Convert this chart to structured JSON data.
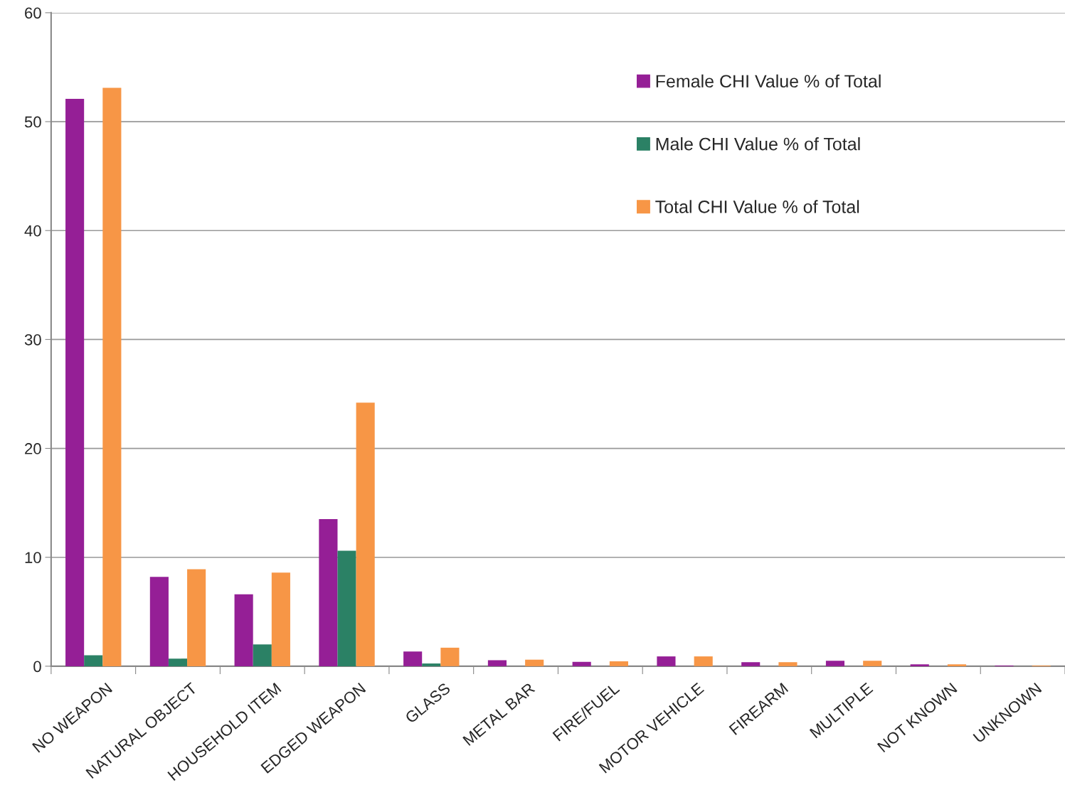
{
  "chart_data": {
    "type": "bar",
    "categories": [
      "NO WEAPON",
      "NATURAL OBJECT",
      "HOUSEHOLD ITEM",
      "EDGED WEAPON",
      "GLASS",
      "METAL BAR",
      "FIRE/FUEL",
      "MOTOR VEHICLE",
      "FIREARM",
      "MULTIPLE",
      "NOT KNOWN",
      "UNKNOWN"
    ],
    "series": [
      {
        "name": "Female CHI Value % of Total",
        "color": "#951f96",
        "values": [
          52.1,
          8.2,
          6.6,
          13.5,
          1.35,
          0.55,
          0.4,
          0.9,
          0.37,
          0.5,
          0.17,
          0.05
        ]
      },
      {
        "name": "Male CHI Value % of Total",
        "color": "#2b8165",
        "values": [
          1.0,
          0.7,
          2.0,
          10.6,
          0.25,
          0,
          0,
          0,
          0,
          0,
          0,
          0
        ]
      },
      {
        "name": "Total CHI Value % of Total",
        "color": "#f79646",
        "values": [
          53.1,
          8.9,
          8.6,
          24.2,
          1.7,
          0.6,
          0.45,
          0.9,
          0.37,
          0.5,
          0.17,
          0.05
        ]
      }
    ],
    "ylim": [
      0,
      60
    ],
    "yticks": [
      0,
      10,
      20,
      30,
      40,
      50,
      60
    ],
    "grid": "y",
    "legend": "top right"
  }
}
